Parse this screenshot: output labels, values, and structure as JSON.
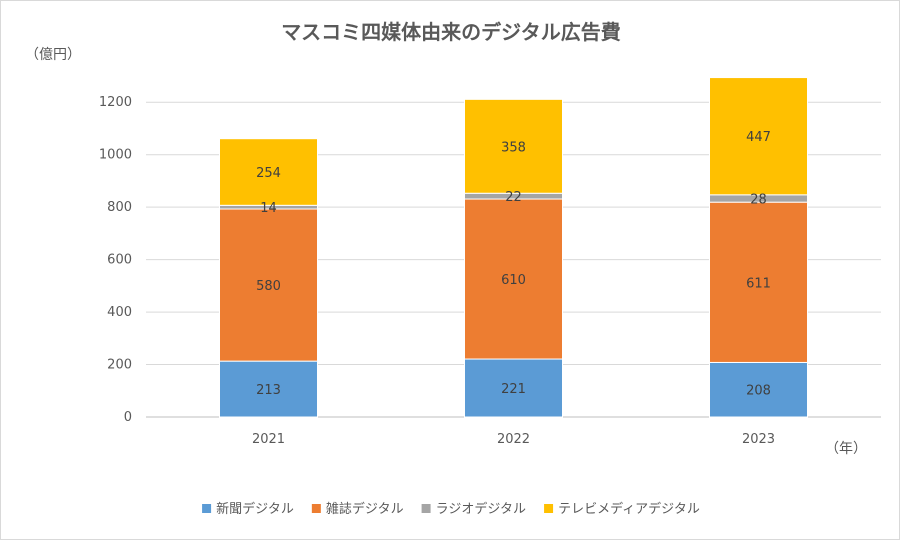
{
  "chart_data": {
    "type": "bar",
    "stacked": true,
    "title": "マスコミ四媒体由来のデジタル広告費",
    "ylabel": "（億円）",
    "xlabel": "（年）",
    "ylim": [
      0,
      1300
    ],
    "yticks": [
      0,
      200,
      400,
      600,
      800,
      1000,
      1200
    ],
    "grid": true,
    "legend_position": "bottom",
    "categories": [
      "2021",
      "2022",
      "2023"
    ],
    "series": [
      {
        "name": "新聞デジタル",
        "color": "#5b9bd5",
        "values": [
          213,
          221,
          208
        ]
      },
      {
        "name": "雑誌デジタル",
        "color": "#ed7d31",
        "values": [
          580,
          610,
          611
        ]
      },
      {
        "name": "ラジオデジタル",
        "color": "#a5a5a5",
        "values": [
          14,
          22,
          28
        ]
      },
      {
        "name": "テレビメディアデジタル",
        "color": "#ffc000",
        "values": [
          254,
          358,
          447
        ]
      }
    ]
  }
}
